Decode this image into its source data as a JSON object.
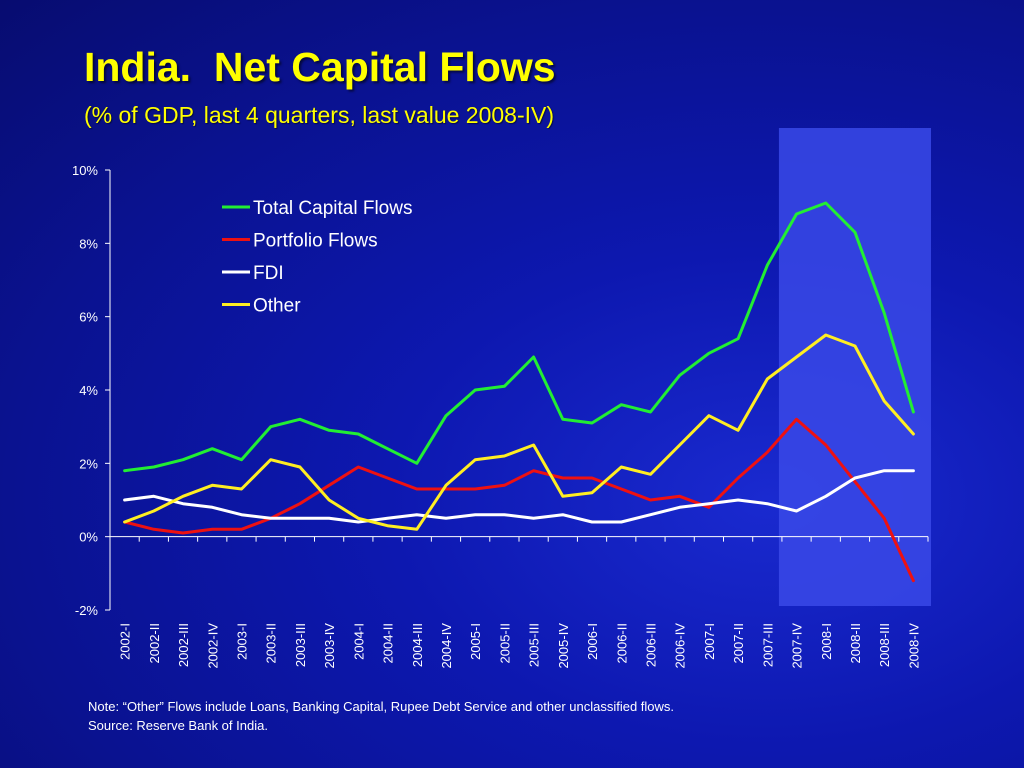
{
  "slide": {
    "title": "India.  Net Capital Flows",
    "subtitle": "(% of GDP, last 4 quarters, last value 2008-IV)",
    "note": "Note: “Other” Flows include Loans, Banking Capital, Rupee Debt Service and other unclassified flows.",
    "source": "Source: Reserve Bank of India."
  },
  "colors": {
    "background": "#0c16a8",
    "title": "#ffff00",
    "highlight_band": "#3a49e8",
    "axis": "#ffffff"
  },
  "chart_data": {
    "type": "line",
    "title": "India.  Net Capital Flows",
    "subtitle": "(% of GDP, last 4 quarters, last value 2008-IV)",
    "xlabel": "",
    "ylabel": "",
    "ylim": [
      -2,
      10
    ],
    "yticks": [
      "-2%",
      "0%",
      "2%",
      "4%",
      "6%",
      "8%",
      "10%"
    ],
    "ytick_values": [
      -2,
      0,
      2,
      4,
      6,
      8,
      10
    ],
    "grid": false,
    "legend_position": "top-left",
    "highlight_range": [
      "2007-IV",
      "2008-IV"
    ],
    "categories": [
      "2002-I",
      "2002-II",
      "2002-III",
      "2002-IV",
      "2003-I",
      "2003-II",
      "2003-III",
      "2003-IV",
      "2004-I",
      "2004-II",
      "2004-III",
      "2004-IV",
      "2005-I",
      "2005-II",
      "2005-III",
      "2005-IV",
      "2006-I",
      "2006-II",
      "2006-III",
      "2006-IV",
      "2007-I",
      "2007-II",
      "2007-III",
      "2007-IV",
      "2008-I",
      "2008-II",
      "2008-III",
      "2008-IV"
    ],
    "series": [
      {
        "name": "Total Capital Flows",
        "color": "#22ee33",
        "values": [
          1.8,
          1.9,
          2.1,
          2.4,
          2.1,
          3.0,
          3.2,
          2.9,
          2.8,
          2.4,
          2.0,
          3.3,
          4.0,
          4.1,
          4.9,
          3.2,
          3.1,
          3.6,
          3.4,
          4.4,
          5.0,
          5.4,
          7.4,
          8.8,
          9.1,
          8.3,
          6.1,
          3.4
        ]
      },
      {
        "name": "Portfolio Flows",
        "color": "#ee1111",
        "values": [
          0.4,
          0.2,
          0.1,
          0.2,
          0.2,
          0.5,
          0.9,
          1.4,
          1.9,
          1.6,
          1.3,
          1.3,
          1.3,
          1.4,
          1.8,
          1.6,
          1.6,
          1.3,
          1.0,
          1.1,
          0.8,
          1.6,
          2.3,
          3.2,
          2.5,
          1.5,
          0.5,
          -1.2
        ]
      },
      {
        "name": "FDI",
        "color": "#ffffff",
        "values": [
          1.0,
          1.1,
          0.9,
          0.8,
          0.6,
          0.5,
          0.5,
          0.5,
          0.4,
          0.5,
          0.6,
          0.5,
          0.6,
          0.6,
          0.5,
          0.6,
          0.4,
          0.4,
          0.6,
          0.8,
          0.9,
          1.0,
          0.9,
          0.7,
          1.1,
          1.6,
          1.8,
          1.8
        ]
      },
      {
        "name": "Other",
        "color": "#ffee22",
        "values": [
          0.4,
          0.7,
          1.1,
          1.4,
          1.3,
          2.1,
          1.9,
          1.0,
          0.5,
          0.3,
          0.2,
          1.4,
          2.1,
          2.2,
          2.5,
          1.1,
          1.2,
          1.9,
          1.7,
          2.5,
          3.3,
          2.9,
          4.3,
          4.9,
          5.5,
          5.2,
          3.7,
          2.8
        ]
      }
    ]
  }
}
